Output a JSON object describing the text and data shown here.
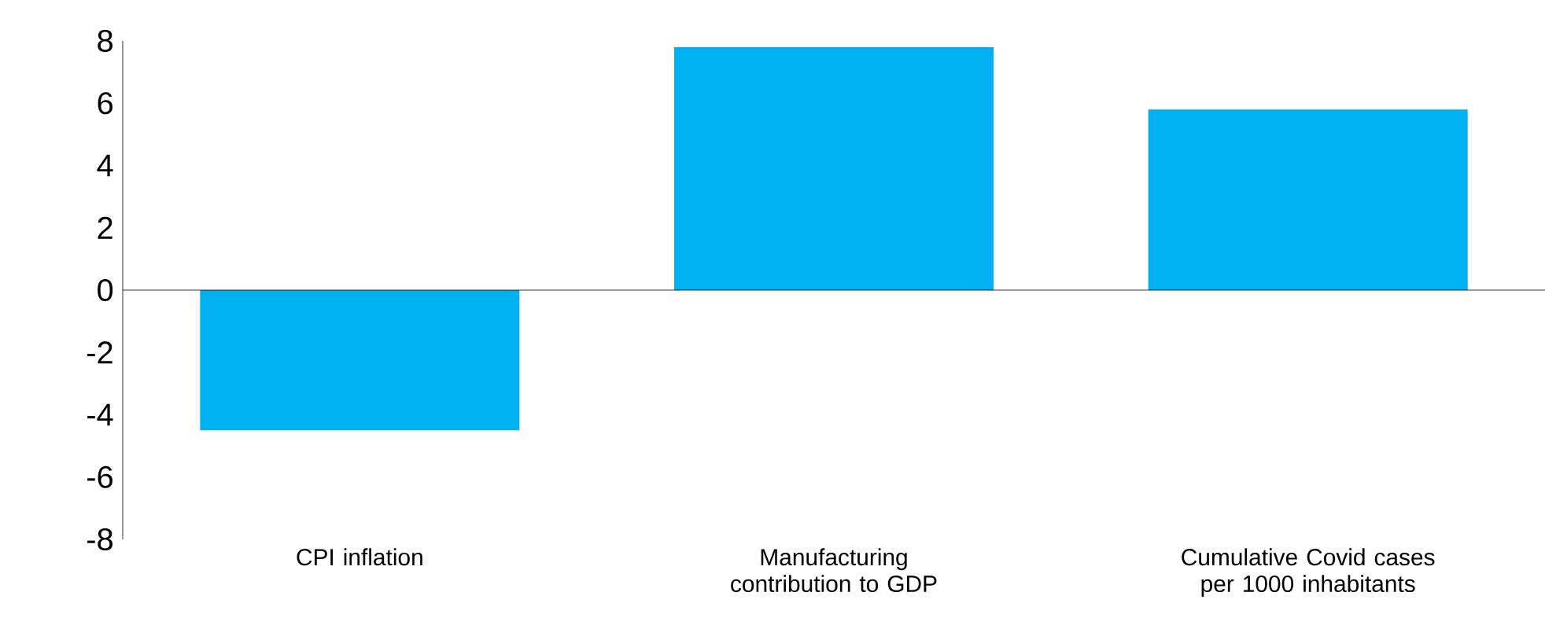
{
  "chart_data": {
    "type": "bar",
    "categories": [
      "CPI inflation",
      "Manufacturing contribution to GDP",
      "Cumulative Covid cases per 1000 inhabitants"
    ],
    "values": [
      -4.5,
      7.8,
      5.8
    ],
    "color": "#00b0f0",
    "ylim": [
      -8,
      8
    ],
    "yticks": [
      -8,
      -6,
      -4,
      -2,
      0,
      2,
      4,
      6,
      8
    ],
    "ref_lines": [
      {
        "axis": "y",
        "value": 0
      }
    ]
  }
}
